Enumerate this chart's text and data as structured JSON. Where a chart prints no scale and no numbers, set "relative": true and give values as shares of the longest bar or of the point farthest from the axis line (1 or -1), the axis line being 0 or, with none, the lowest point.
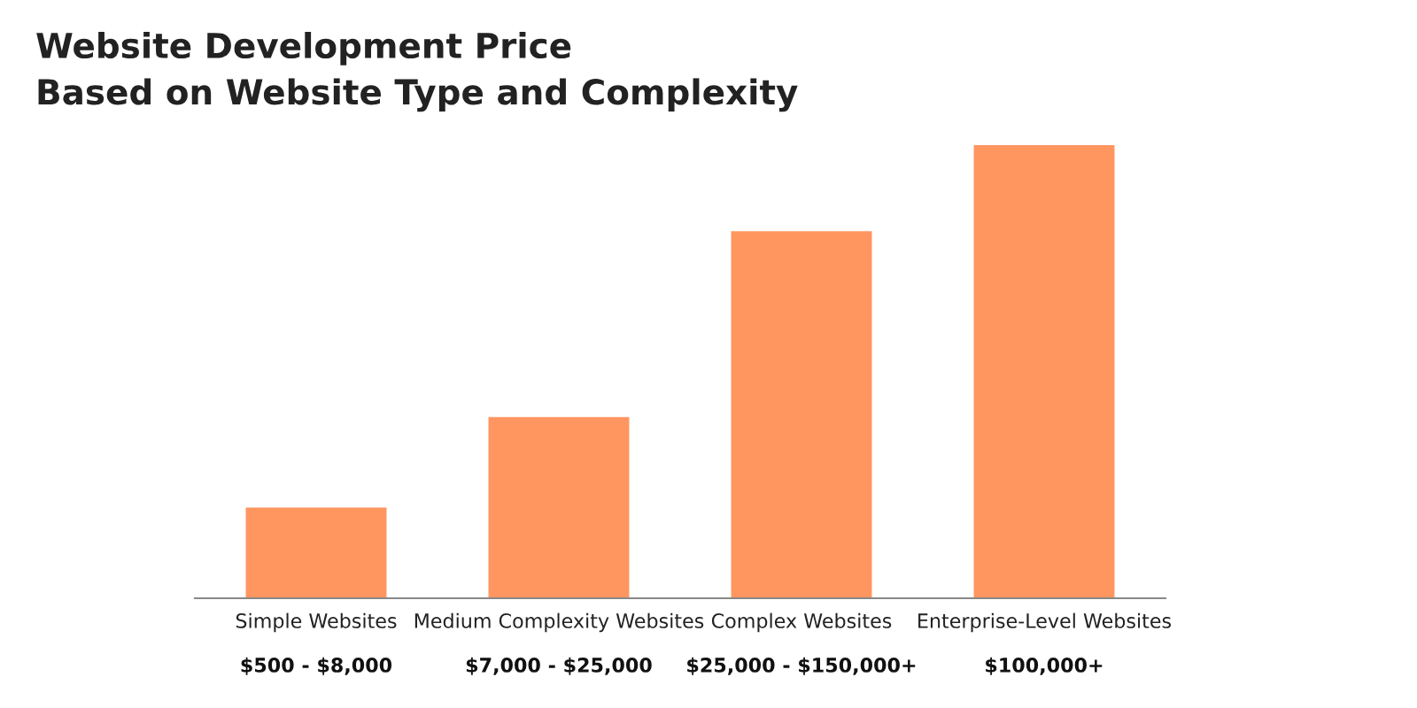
{
  "chart_data": {
    "type": "bar",
    "title": "Website Development Price\nBased on Website Type and Complexity",
    "categories": [
      "Simple Websites\n$500 - $8,000",
      "Medium Complexity Websites\n$7,000 - $25,000",
      "Complex Websites\n$25,000 - $150,000+",
      "Enterprise-Level Websites\n$100,000+"
    ],
    "values": [
      0.2,
      0.4,
      0.81,
      1
    ],
    "color": "#ff9660",
    "relative": true,
    "grid": false,
    "legend": false
  }
}
